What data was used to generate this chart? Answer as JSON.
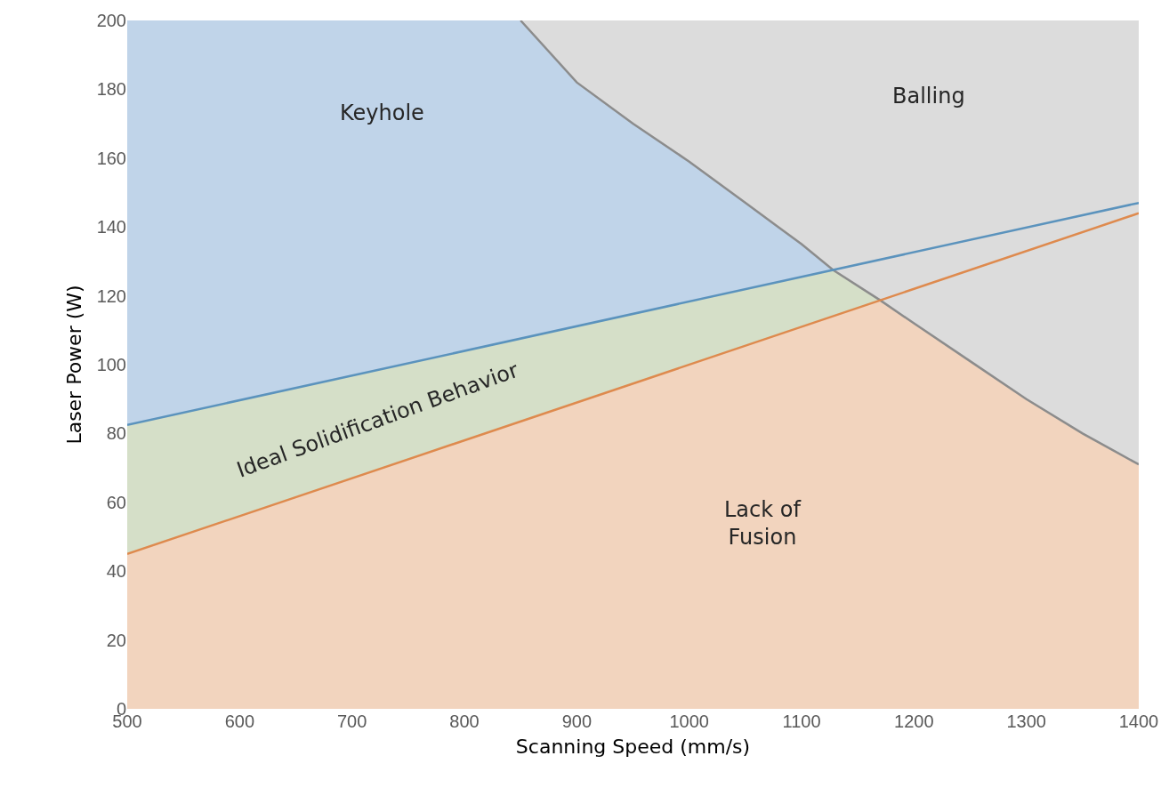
{
  "chart_data": {
    "type": "area",
    "xlabel": "Scanning Speed (mm/s)",
    "ylabel": "Laser Power (W)",
    "xlim": [
      500,
      1400
    ],
    "xticks": [
      500,
      600,
      700,
      800,
      900,
      1000,
      1100,
      1200,
      1300,
      1400
    ],
    "ylim": [
      0,
      200
    ],
    "yticks": [
      0,
      20,
      40,
      60,
      80,
      100,
      120,
      140,
      160,
      180,
      200
    ],
    "marker": "none",
    "series": [
      {
        "color": "#dcdcdc",
        "x": [
          850,
          1400
        ],
        "values": [
          200,
          200
        ]
      },
      {
        "color": "#c0d4e9",
        "x": [
          500,
          850,
          900,
          950,
          1000,
          1050,
          1100,
          1128
        ],
        "values": [
          200,
          200,
          182,
          170,
          159,
          147,
          135,
          127.5
        ]
      },
      {
        "color": "#d5dfc8",
        "x": [
          500,
          1128,
          1170
        ],
        "values": [
          82.5,
          127.5,
          118.7
        ]
      },
      {
        "color": "#f2d4be",
        "x": [
          500,
          1170,
          1200,
          1250,
          1300,
          1350,
          1400
        ],
        "values": [
          45,
          118.7,
          112,
          101,
          90,
          80,
          71
        ]
      },
      {
        "type": "line",
        "color": "#8c8c8c",
        "x": [
          850,
          900,
          950,
          1000,
          1050,
          1100,
          1128,
          1170,
          1200,
          1250,
          1300,
          1350,
          1400
        ],
        "values": [
          200,
          182,
          170,
          159,
          147,
          135,
          127.5,
          118.7,
          112,
          101,
          90,
          80,
          71
        ]
      },
      {
        "type": "line",
        "color": "#5b93bd",
        "x": [
          500,
          1400
        ],
        "values": [
          82.5,
          147
        ]
      },
      {
        "type": "line",
        "color": "#de8a4e",
        "x": [
          500,
          1400
        ],
        "values": [
          45,
          144
        ]
      }
    ],
    "annotations": [
      "Keyhole",
      "Balling",
      "Ideal Solidification Behavior",
      "Lack of\nFusion"
    ]
  }
}
